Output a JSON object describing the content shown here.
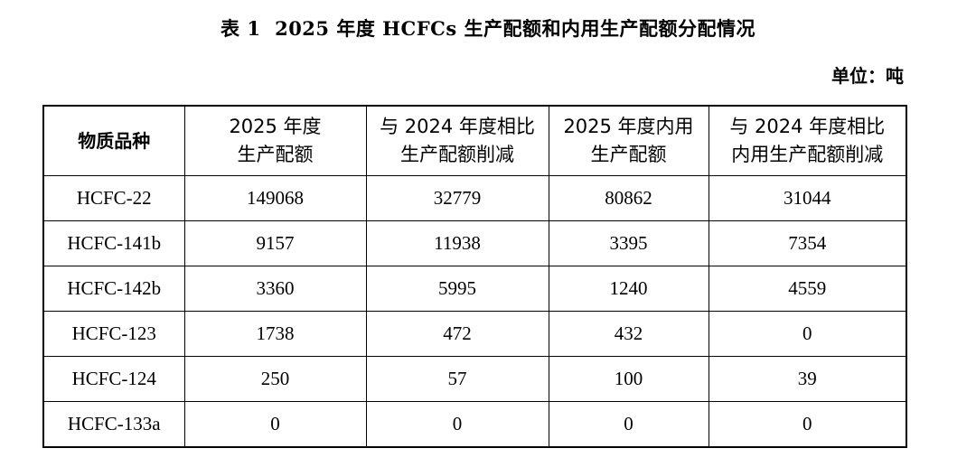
{
  "title": "表 1  2025 年度 HCFCs 生产配额和内用生产配额分配情况",
  "unit": "单位：吨",
  "table": {
    "headers": [
      {
        "lines": [
          "物质品种"
        ]
      },
      {
        "lines": [
          "2025 年度",
          "生产配额"
        ]
      },
      {
        "lines": [
          "与 2024 年度相比",
          "生产配额削减"
        ]
      },
      {
        "lines": [
          "2025 年度内用",
          "生产配额"
        ]
      },
      {
        "lines": [
          "与 2024 年度相比",
          "内用生产配额削减"
        ]
      }
    ],
    "rows": [
      [
        "HCFC-22",
        "149068",
        "32779",
        "80862",
        "31044"
      ],
      [
        "HCFC-141b",
        "9157",
        "11938",
        "3395",
        "7354"
      ],
      [
        "HCFC-142b",
        "3360",
        "5995",
        "1240",
        "4559"
      ],
      [
        "HCFC-123",
        "1738",
        "472",
        "432",
        "0"
      ],
      [
        "HCFC-124",
        "250",
        "57",
        "100",
        "39"
      ],
      [
        "HCFC-133a",
        "0",
        "0",
        "0",
        "0"
      ]
    ]
  }
}
